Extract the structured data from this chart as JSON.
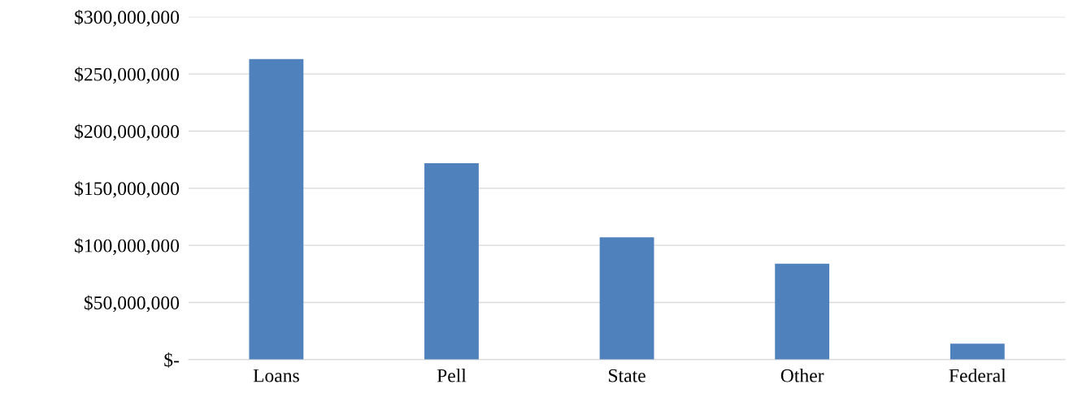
{
  "chart_data": {
    "type": "bar",
    "categories": [
      "Loans",
      "Pell",
      "State",
      "Other",
      "Federal"
    ],
    "values": [
      263000000,
      172000000,
      107000000,
      84000000,
      14000000
    ],
    "color": "#4f81bd",
    "ylim": [
      0,
      300000000
    ],
    "yticks": [
      {
        "value": 0,
        "label": "$-"
      },
      {
        "value": 50000000,
        "label": "$50,000,000"
      },
      {
        "value": 100000000,
        "label": "$100,000,000"
      },
      {
        "value": 150000000,
        "label": "$150,000,000"
      },
      {
        "value": 200000000,
        "label": "$200,000,000"
      },
      {
        "value": 250000000,
        "label": "$250,000,000"
      },
      {
        "value": 300000000,
        "label": "$300,000,000"
      }
    ],
    "grid": "y"
  }
}
